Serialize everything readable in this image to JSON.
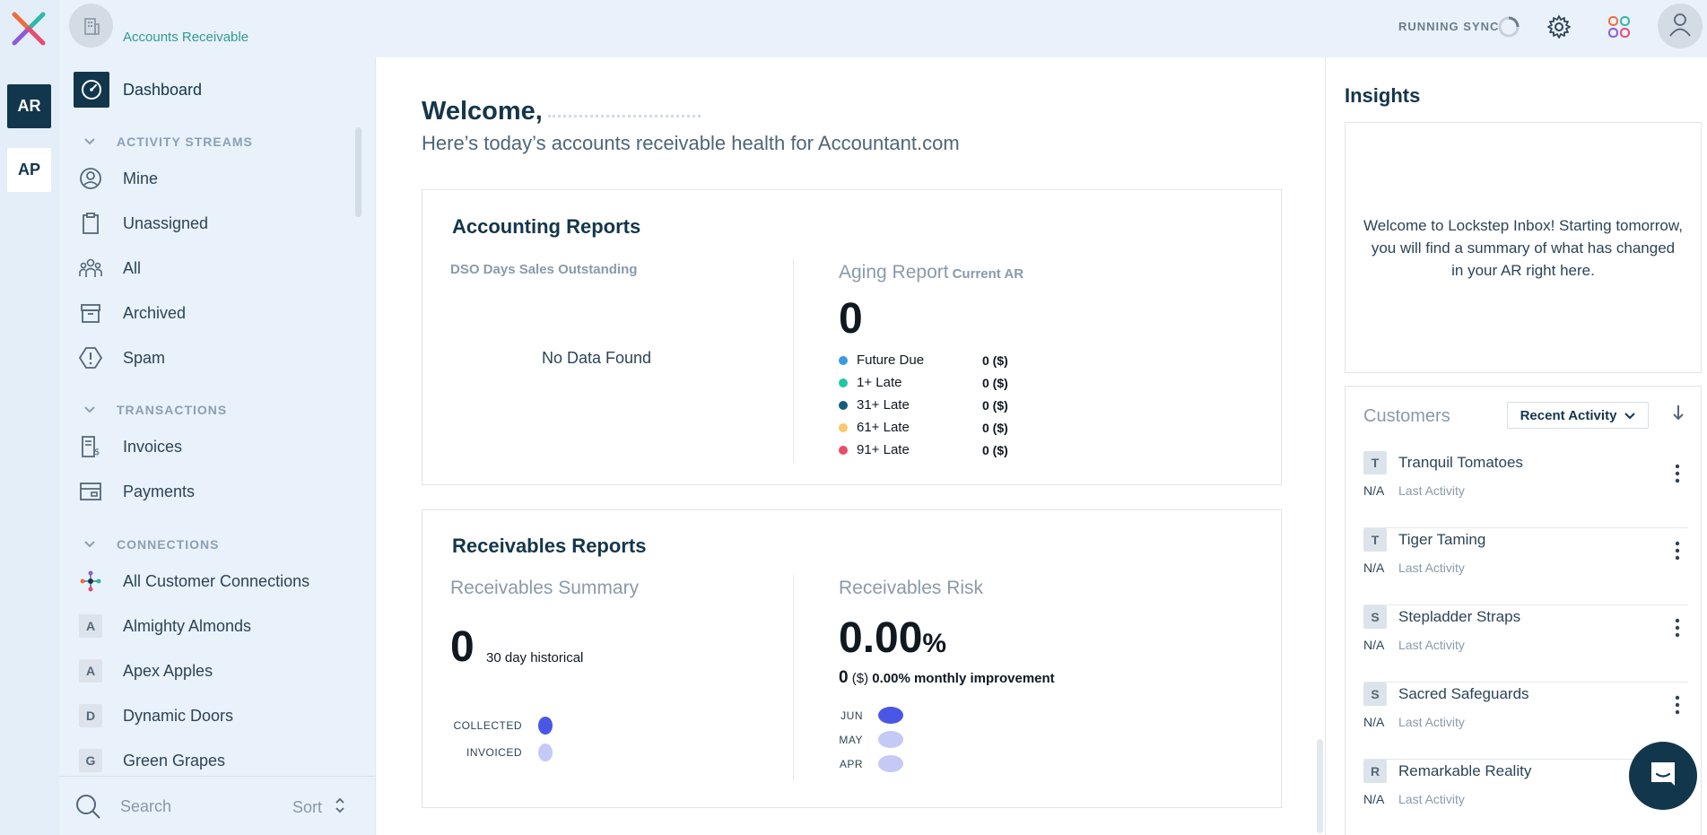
{
  "rail": {
    "ar_label": "AR",
    "ap_label": "AP"
  },
  "sidebar": {
    "workspace_name": "Accounts Receivable",
    "dashboard_label": "Dashboard",
    "sections": {
      "activity": "ACTIVITY STREAMS",
      "transactions": "TRANSACTIONS",
      "connections": "CONNECTIONS"
    },
    "activity_items": [
      {
        "label": "Mine",
        "icon": "user-circle-icon"
      },
      {
        "label": "Unassigned",
        "icon": "clipboard-icon"
      },
      {
        "label": "All",
        "icon": "users-icon"
      },
      {
        "label": "Archived",
        "icon": "archive-icon"
      },
      {
        "label": "Spam",
        "icon": "spam-icon"
      }
    ],
    "transaction_items": [
      {
        "label": "Invoices",
        "icon": "invoice-icon"
      },
      {
        "label": "Payments",
        "icon": "payment-icon"
      }
    ],
    "connection_all": "All Customer Connections",
    "connections": [
      {
        "letter": "A",
        "label": "Almighty Almonds"
      },
      {
        "letter": "A",
        "label": "Apex Apples"
      },
      {
        "letter": "D",
        "label": "Dynamic Doors"
      },
      {
        "letter": "G",
        "label": "Green Grapes"
      }
    ],
    "search_placeholder": "Search",
    "sort_label": "Sort"
  },
  "topbar": {
    "sync_text": "RUNNING SYNC"
  },
  "main": {
    "welcome": "Welcome,",
    "subtitle": "Here’s today’s accounts receivable health for Accountant.com",
    "accounting": {
      "title": "Accounting Reports",
      "dso_label": "DSO Days Sales Outstanding",
      "no_data": "No Data Found",
      "aging_title": "Aging Report",
      "aging_sub": "Current AR",
      "aging_total": "0",
      "aging_rows": [
        {
          "label": "Future Due",
          "value": "0 ($)",
          "color": "#3b9be0"
        },
        {
          "label": "1+ Late",
          "value": "0 ($)",
          "color": "#1fc8a0"
        },
        {
          "label": "31+ Late",
          "value": "0 ($)",
          "color": "#156079"
        },
        {
          "label": "61+ Late",
          "value": "0 ($)",
          "color": "#f8c96b"
        },
        {
          "label": "91+ Late",
          "value": "0 ($)",
          "color": "#ec4b6a"
        }
      ]
    },
    "receivables": {
      "title": "Receivables Reports",
      "summary_title": "Receivables Summary",
      "summary_value": "0",
      "summary_caption": "30 day historical",
      "summary_rows": [
        {
          "label": "COLLECTED",
          "color": "#4a57e6"
        },
        {
          "label": "INVOICED",
          "color": "#c4c9f6"
        }
      ],
      "risk_title": "Receivables Risk",
      "risk_value": "0.00",
      "risk_unit": "%",
      "risk_amount": "0",
      "risk_currency": "($)",
      "risk_improvement": "0.00% monthly improvement",
      "risk_rows": [
        {
          "label": "JUN",
          "color": "#4a57e6"
        },
        {
          "label": "MAY",
          "color": "#c4c9f6"
        },
        {
          "label": "APR",
          "color": "#c4c9f6"
        }
      ]
    }
  },
  "right": {
    "insights_title": "Insights",
    "insights_text": "Welcome to Lockstep Inbox! Starting tomorrow, you will find a summary of what has changed in your AR right here.",
    "customers_title": "Customers",
    "customers_sort": "Recent Activity",
    "customers": [
      {
        "letter": "T",
        "name": "Tranquil Tomatoes",
        "value": "N/A",
        "meta": "Last Activity"
      },
      {
        "letter": "T",
        "name": "Tiger Taming",
        "value": "N/A",
        "meta": "Last Activity"
      },
      {
        "letter": "S",
        "name": "Stepladder Straps",
        "value": "N/A",
        "meta": "Last Activity"
      },
      {
        "letter": "S",
        "name": "Sacred Safeguards",
        "value": "N/A",
        "meta": "Last Activity"
      },
      {
        "letter": "R",
        "name": "Remarkable Reality",
        "value": "N/A",
        "meta": "Last Activity"
      }
    ]
  }
}
